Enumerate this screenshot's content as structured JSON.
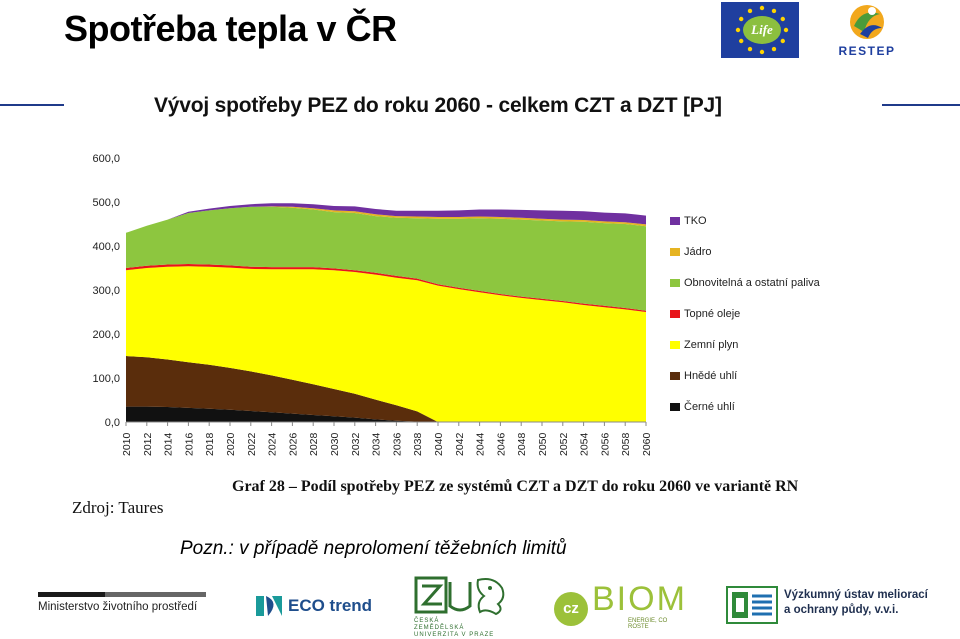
{
  "slide": {
    "title": "Spotřeba tepla v ČR",
    "caption": "Graf 28 – Podíl spotřeby PEZ ze systémů CZT a DZT do roku 2060 ve variantě RN",
    "source": "Zdroj: Taures",
    "note": "Pozn.: v případě neprolomení těžebních limitů"
  },
  "logos": {
    "life_word": "Life",
    "restep_word": "RESTEP",
    "ministry": "Ministerstvo životního prostředí",
    "eco_trend": "ECO trend",
    "czu_text": [
      "ČESKÁ",
      "ZEMĚDĚLSKÁ",
      "UNIVERZITA V PRAZE"
    ],
    "biom_prefix": "cz",
    "biom_word": "BIOM",
    "biom_tag": "ENERGIE, CO ROSTE",
    "vumop_line1": "Výzkumný ústav meliorací",
    "vumop_line2": "a ochrany půdy, v.v.i.",
    "colors": {
      "eu_blue": "#1f3f9f",
      "life_green": "#8cbf3f",
      "biom_green": "#9cc13a",
      "rule_blue": "#1f3a8a"
    }
  },
  "chart_data": {
    "type": "area",
    "stacked": true,
    "title": "Vývoj spotřeby PEZ do roku 2060 - celkem CZT a DZT [PJ]",
    "xlabel": "",
    "ylabel": "",
    "ylim": [
      0,
      600
    ],
    "y_ticks": [
      "600,0",
      "500,0",
      "400,0",
      "300,0",
      "200,0",
      "100,0",
      "0,0"
    ],
    "y_tick_values": [
      600,
      500,
      400,
      300,
      200,
      100,
      0
    ],
    "grid": false,
    "legend_position": "right",
    "categories": [
      "2010",
      "2012",
      "2014",
      "2016",
      "2018",
      "2020",
      "2022",
      "2024",
      "2026",
      "2028",
      "2030",
      "2032",
      "2034",
      "2036",
      "2038",
      "2040",
      "2042",
      "2044",
      "2046",
      "2048",
      "2050",
      "2052",
      "2054",
      "2056",
      "2058",
      "2060"
    ],
    "series": [
      {
        "name": "Černé uhlí",
        "color": "#111111",
        "values": [
          35,
          35,
          34,
          32,
          30,
          28,
          25,
          22,
          19,
          16,
          13,
          10,
          6,
          3,
          1,
          0,
          0,
          0,
          0,
          0,
          0,
          0,
          0,
          0,
          0,
          0
        ]
      },
      {
        "name": "Hnědé uhlí",
        "color": "#5a2d0c",
        "values": [
          115,
          112,
          108,
          104,
          100,
          95,
          90,
          84,
          77,
          70,
          62,
          54,
          45,
          35,
          23,
          0,
          0,
          0,
          0,
          0,
          0,
          0,
          0,
          0,
          0,
          0
        ]
      },
      {
        "name": "Zemní plyn",
        "color": "#ffff00",
        "values": [
          195,
          203,
          211,
          218,
          223,
          228,
          233,
          241,
          251,
          261,
          270,
          277,
          284,
          290,
          298,
          310,
          302,
          295,
          288,
          282,
          277,
          272,
          266,
          261,
          256,
          250
        ]
      },
      {
        "name": "Topné oleje",
        "color": "#e8141a",
        "values": [
          5,
          5,
          5,
          5,
          5,
          5,
          5,
          5,
          5,
          5,
          4,
          4,
          4,
          4,
          4,
          3,
          3,
          3,
          3,
          3,
          3,
          3,
          3,
          3,
          3,
          3
        ]
      },
      {
        "name": "Obnovitelná a ostatní paliva",
        "color": "#8dc63f",
        "values": [
          80,
          91,
          102,
          116,
          123,
          130,
          136,
          137,
          135,
          131,
          128,
          130,
          129,
          132,
          137,
          149,
          157,
          165,
          171,
          175,
          178,
          181,
          186,
          188,
          191,
          192
        ]
      },
      {
        "name": "Jádro",
        "color": "#e6b422",
        "values": [
          0,
          0,
          0,
          0,
          0,
          0,
          0,
          1,
          2,
          3,
          4,
          4,
          4,
          4,
          4,
          4,
          4,
          4,
          4,
          4,
          4,
          4,
          4,
          4,
          4,
          4
        ]
      },
      {
        "name": "TKO",
        "color": "#7030a0",
        "values": [
          0,
          0,
          0,
          3,
          4,
          5,
          6,
          7,
          8,
          9,
          10,
          11,
          12,
          12,
          13,
          14,
          15,
          16,
          17,
          18,
          19,
          20,
          20,
          20,
          20,
          20
        ]
      }
    ],
    "legend_order": [
      "TKO",
      "Jádro",
      "Obnovitelná a ostatní paliva",
      "Topné oleje",
      "Zemní plyn",
      "Hnědé uhlí",
      "Černé uhlí"
    ]
  }
}
